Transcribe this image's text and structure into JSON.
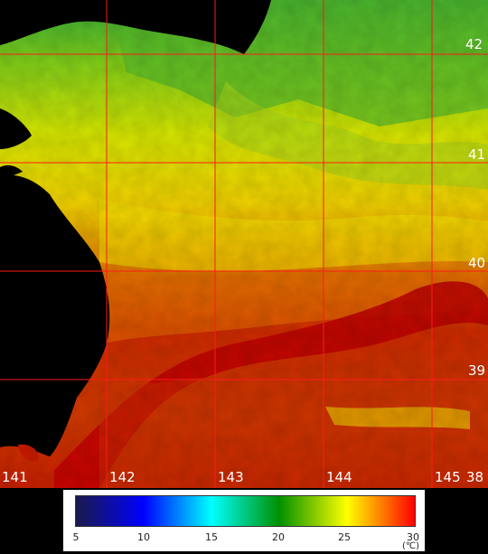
{
  "map": {
    "lat_labels": [
      "42",
      "41",
      "40",
      "39",
      "38"
    ],
    "lon_labels": [
      "141",
      "142",
      "143",
      "144",
      "145"
    ]
  },
  "legend": {
    "ticks": [
      "5",
      "10",
      "15",
      "20",
      "25",
      "30"
    ],
    "unit": "(℃)",
    "min": 5,
    "max": 30,
    "colors": [
      "#1a1a4a",
      "#0000ff",
      "#00ffff",
      "#009000",
      "#ffff00",
      "#ff0000"
    ]
  },
  "colors": {
    "grid": "#ff0000",
    "land": "#000000",
    "warm": "#cc1a00",
    "cool": "#3ca800"
  }
}
